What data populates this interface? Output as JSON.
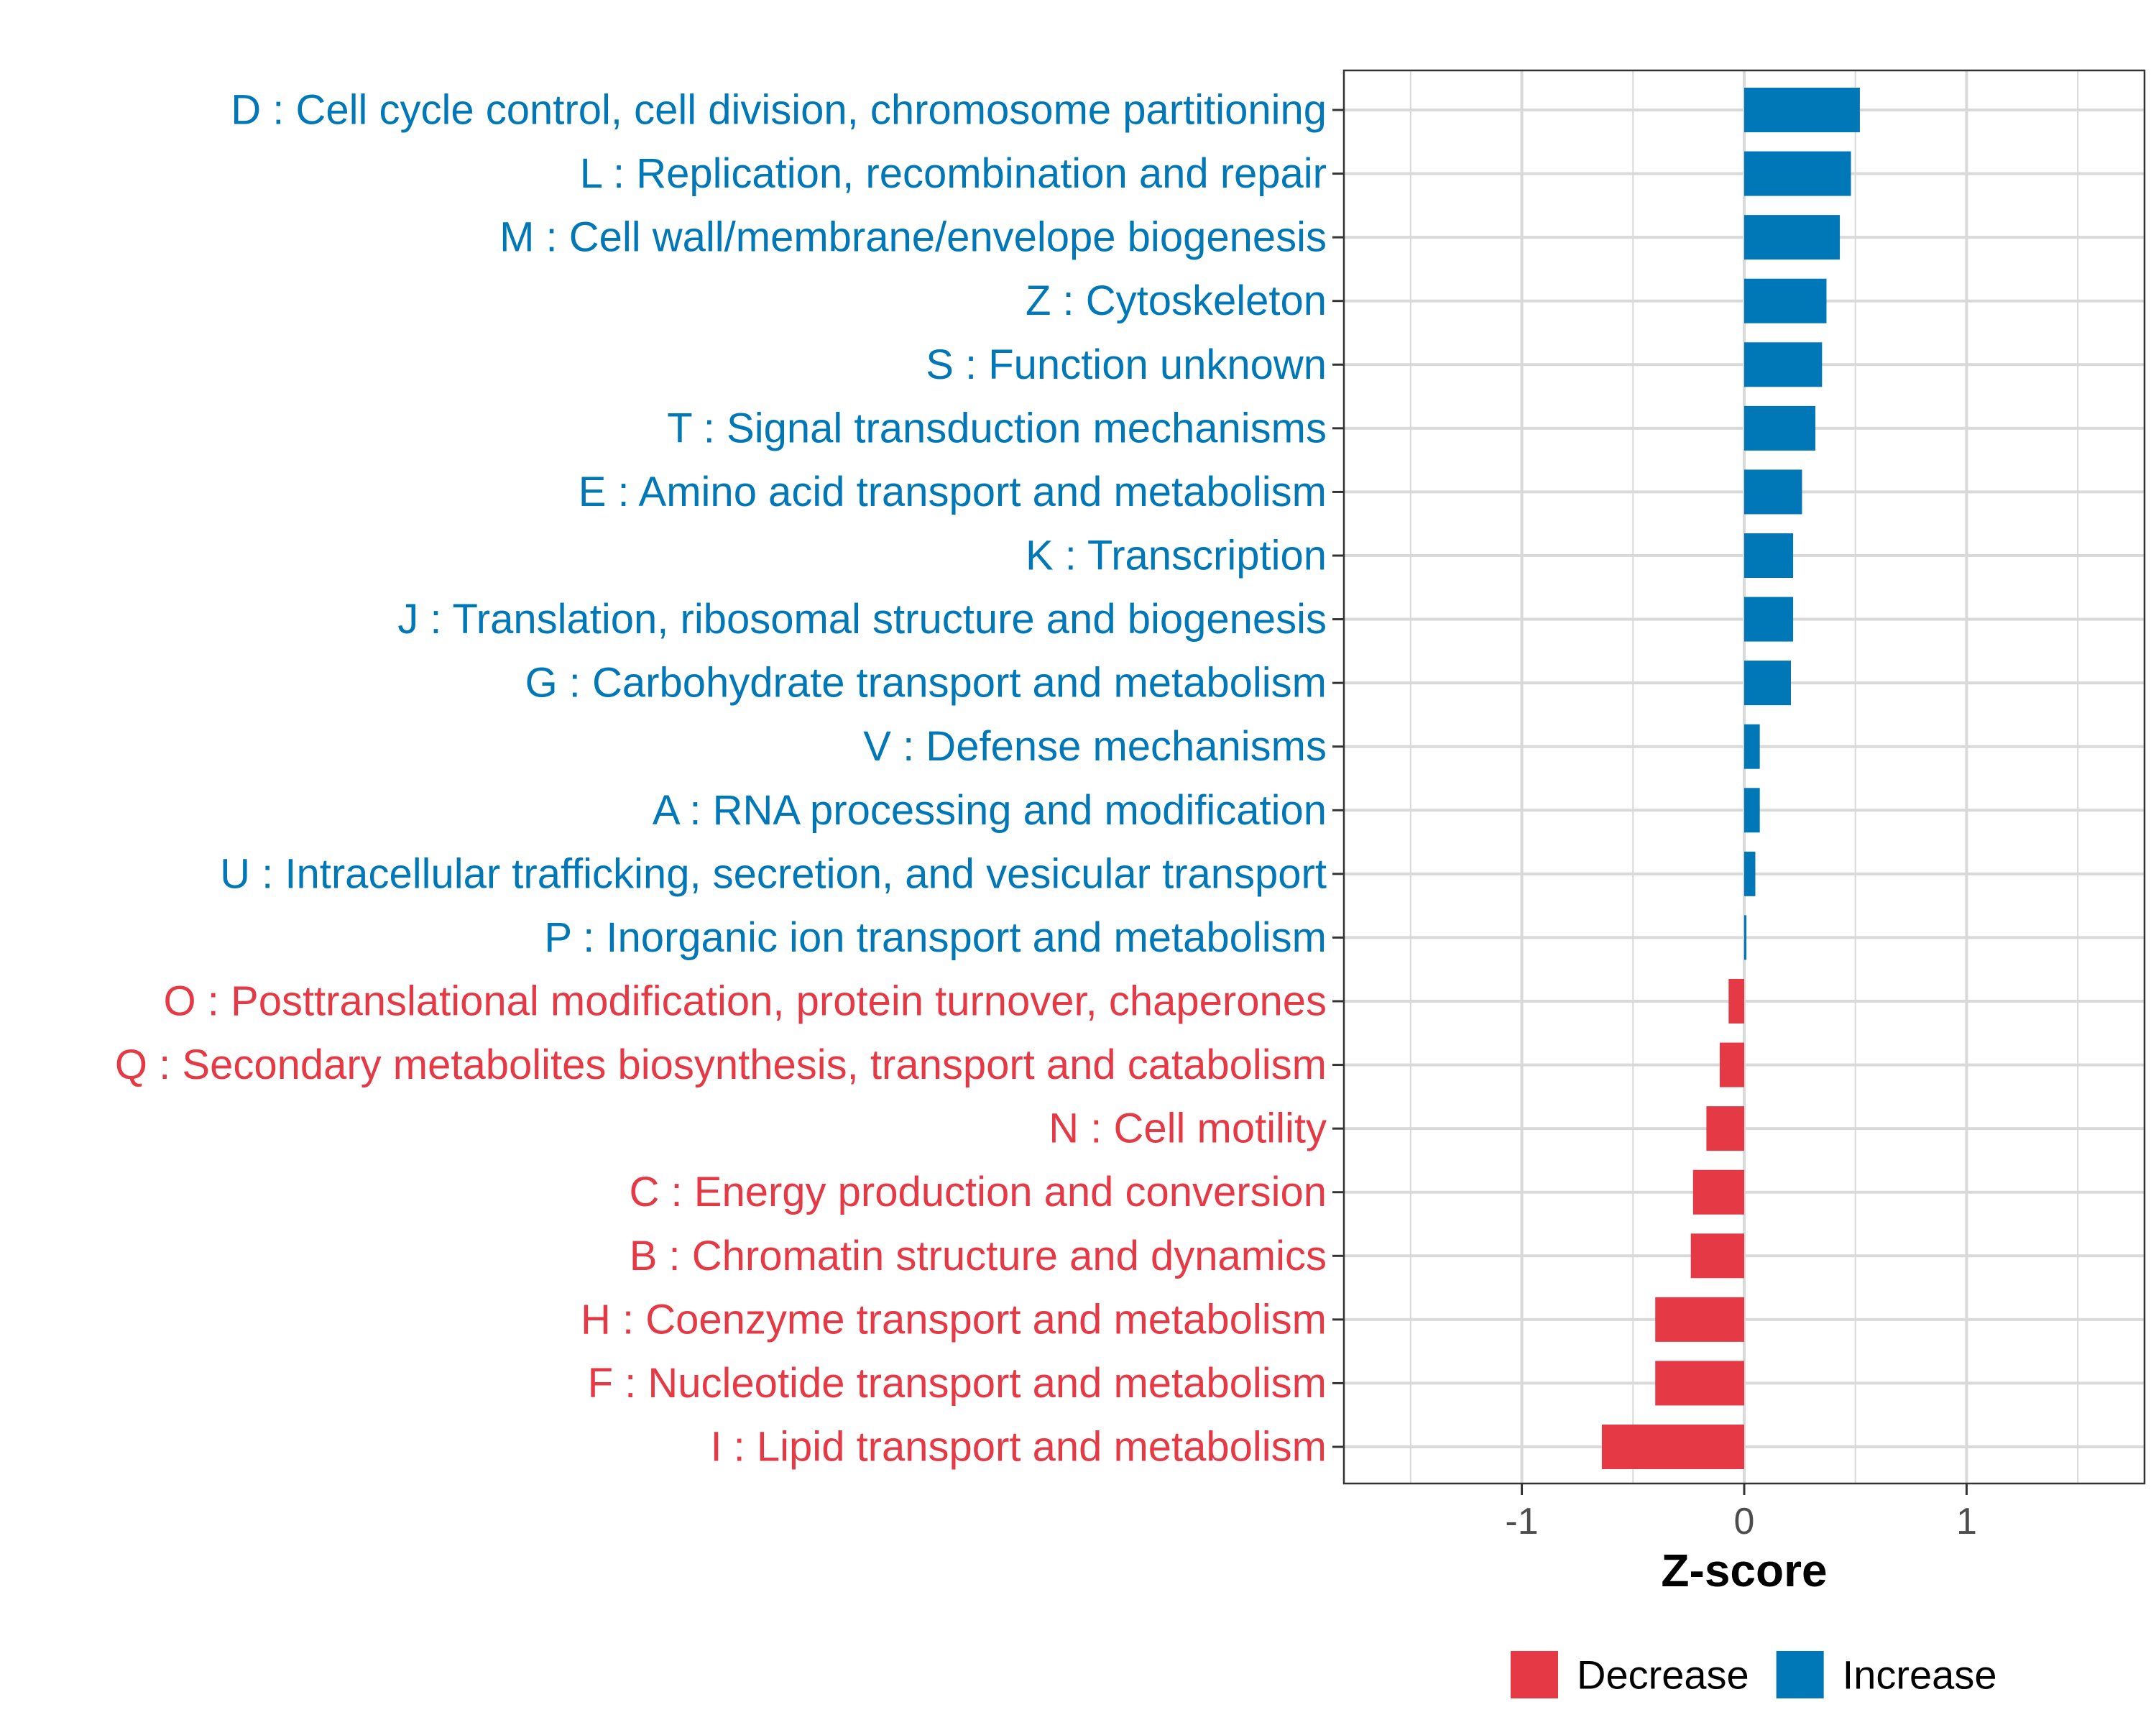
{
  "chart_data": {
    "type": "bar",
    "orientation": "horizontal",
    "xlabel": "Z-score",
    "xlim": [
      -1.8,
      1.8
    ],
    "xticks": [
      -1,
      0,
      1
    ],
    "xtick_labels": [
      "-1",
      "0",
      "1"
    ],
    "grid": true,
    "legend": {
      "position": "bottom",
      "entries": [
        {
          "label": "Decrease",
          "color": "#E63946"
        },
        {
          "label": "Increase",
          "color": "#0077B6"
        }
      ]
    },
    "categories": [
      "D : Cell cycle control, cell division, chromosome partitioning",
      "L : Replication, recombination and repair",
      "M : Cell wall/membrane/envelope biogenesis",
      "Z : Cytoskeleton",
      "S : Function unknown",
      "T : Signal transduction mechanisms",
      "E : Amino acid transport and metabolism",
      "K : Transcription",
      "J : Translation, ribosomal structure and biogenesis",
      "G : Carbohydrate transport and metabolism",
      "V : Defense mechanisms",
      "A : RNA processing and modification",
      "U : Intracellular trafficking, secretion, and vesicular transport",
      "P : Inorganic ion transport and metabolism",
      "O : Posttranslational modification, protein turnover, chaperones",
      "Q : Secondary metabolites biosynthesis, transport and catabolism",
      "N : Cell motility",
      "C : Energy production and conversion",
      "B : Chromatin structure and dynamics",
      "H : Coenzyme transport and metabolism",
      "F : Nucleotide transport and metabolism",
      "I : Lipid transport and metabolism"
    ],
    "values": [
      0.52,
      0.48,
      0.43,
      0.37,
      0.35,
      0.32,
      0.26,
      0.22,
      0.22,
      0.21,
      0.07,
      0.07,
      0.05,
      0.01,
      -0.07,
      -0.11,
      -0.17,
      -0.23,
      -0.24,
      -0.4,
      -0.4,
      -0.64
    ],
    "groups": [
      "Increase",
      "Increase",
      "Increase",
      "Increase",
      "Increase",
      "Increase",
      "Increase",
      "Increase",
      "Increase",
      "Increase",
      "Increase",
      "Increase",
      "Increase",
      "Increase",
      "Decrease",
      "Decrease",
      "Decrease",
      "Decrease",
      "Decrease",
      "Decrease",
      "Decrease",
      "Decrease"
    ]
  }
}
